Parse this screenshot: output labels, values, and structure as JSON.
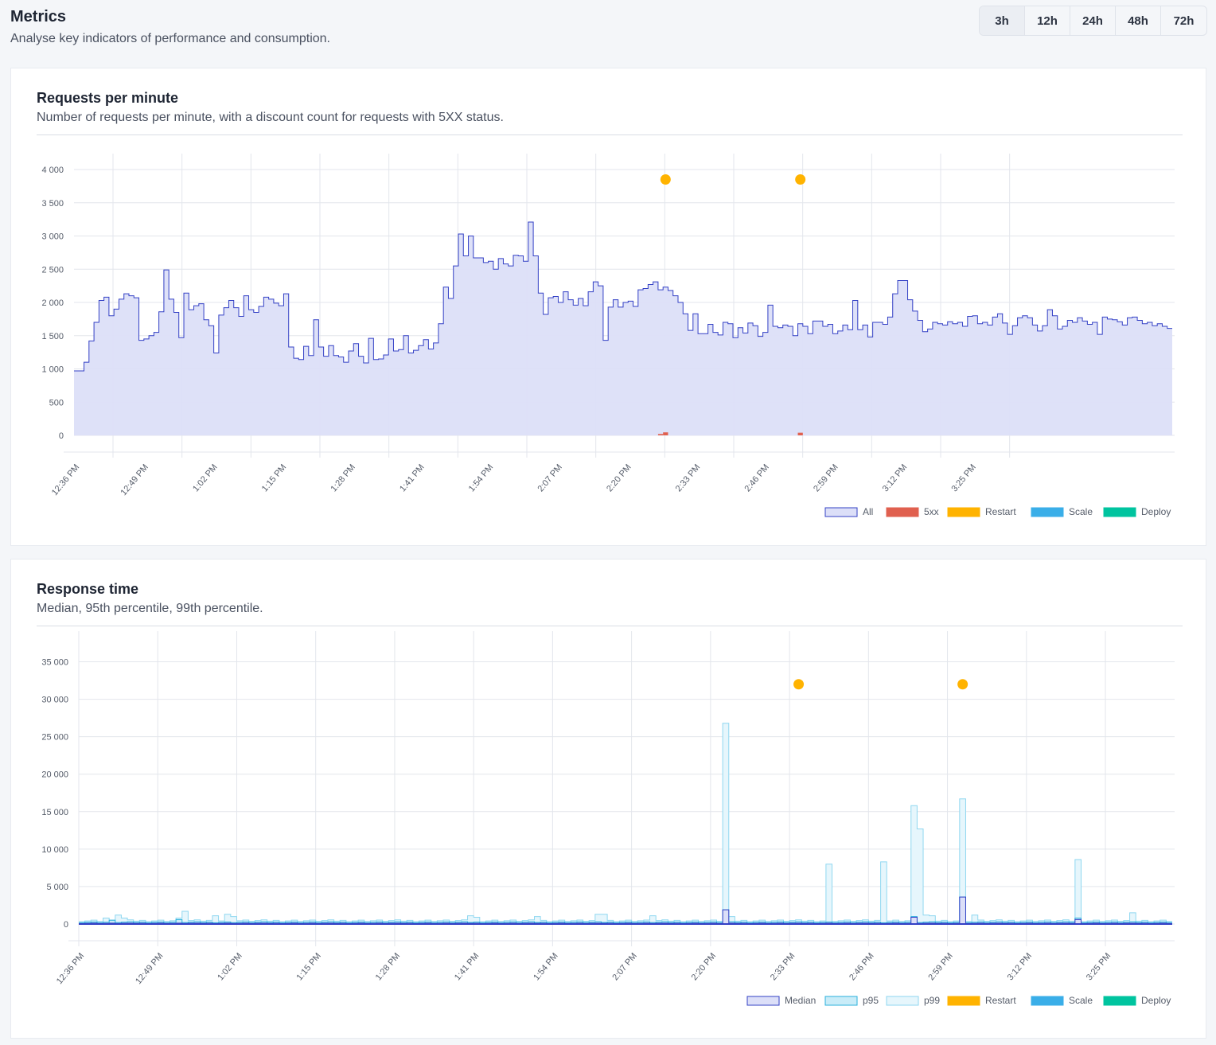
{
  "page": {
    "title": "Metrics",
    "subtitle": "Analyse key indicators of performance and consumption."
  },
  "range": {
    "options": [
      "3h",
      "12h",
      "24h",
      "48h",
      "72h"
    ],
    "selected": "3h"
  },
  "colors": {
    "all_fill": "#dcdff8",
    "all_line": "#3340c5",
    "fivexx": "#e0604f",
    "restart": "#ffb300",
    "scale": "#3aaee8",
    "deploy": "#00c49f",
    "median_fill": "#dcdff8",
    "median_line": "#3340c5",
    "p95_fill": "#c9ecf8",
    "p95_line": "#2ab0dd",
    "p99_fill": "#e6f6fc",
    "p99_line": "#8fd7f0"
  },
  "requests_card": {
    "title": "Requests per minute",
    "subtitle": "Number of requests per minute, with a discount count for requests with 5XX status."
  },
  "response_card": {
    "title": "Response time",
    "subtitle": "Median, 95th percentile, 99th percentile."
  },
  "chart_data": [
    {
      "type": "area",
      "step": true,
      "title": "Requests per minute",
      "x_start": "12:36 PM",
      "x_interval_minutes": 1,
      "x_ticks": [
        "12:36 PM",
        "12:49 PM",
        "1:02 PM",
        "1:15 PM",
        "1:28 PM",
        "1:41 PM",
        "1:54 PM",
        "2:07 PM",
        "2:20 PM",
        "2:33 PM",
        "2:46 PM",
        "2:59 PM",
        "3:12 PM",
        "3:25 PM"
      ],
      "y_ticks": [
        "0",
        "500",
        "1 000",
        "1 500",
        "2 000",
        "2 500",
        "3 000",
        "3 500",
        "4 000"
      ],
      "ylim": [
        0,
        4000
      ],
      "grid": true,
      "legend": "bottom-right",
      "legend_items": [
        "All",
        "5xx",
        "Restart",
        "Scale",
        "Deploy"
      ],
      "series": [
        {
          "name": "All",
          "values": [
            970,
            970,
            1100,
            1420,
            1700,
            2030,
            2080,
            1800,
            1900,
            2050,
            2130,
            2100,
            2070,
            1430,
            1450,
            1500,
            1550,
            1860,
            2490,
            2050,
            1850,
            1470,
            2140,
            1890,
            1950,
            1980,
            1740,
            1650,
            1240,
            1810,
            1920,
            2030,
            1920,
            1790,
            2100,
            1890,
            1850,
            1940,
            2080,
            2050,
            1990,
            1950,
            2130,
            1330,
            1160,
            1140,
            1340,
            1200,
            1740,
            1330,
            1190,
            1350,
            1200,
            1180,
            1100,
            1270,
            1380,
            1190,
            1090,
            1460,
            1140,
            1150,
            1210,
            1450,
            1270,
            1290,
            1500,
            1240,
            1280,
            1350,
            1440,
            1300,
            1390,
            1680,
            2230,
            2060,
            2550,
            3030,
            2700,
            3000,
            2670,
            2670,
            2600,
            2620,
            2500,
            2660,
            2580,
            2550,
            2710,
            2700,
            2620,
            3210,
            2700,
            2140,
            1820,
            2070,
            2090,
            2000,
            2160,
            2040,
            1960,
            2060,
            1950,
            2160,
            2310,
            2250,
            1430,
            1930,
            2040,
            1930,
            2000,
            2020,
            1940,
            2190,
            2210,
            2270,
            2310,
            2190,
            2230,
            2180,
            2100,
            2000,
            1830,
            1580,
            1830,
            1530,
            1530,
            1670,
            1550,
            1510,
            1700,
            1680,
            1470,
            1620,
            1540,
            1690,
            1650,
            1490,
            1550,
            1960,
            1640,
            1620,
            1660,
            1640,
            1500,
            1680,
            1640,
            1530,
            1720,
            1720,
            1640,
            1670,
            1530,
            1570,
            1660,
            1590,
            2030,
            1590,
            1660,
            1480,
            1700,
            1700,
            1670,
            1780,
            2130,
            2330,
            2330,
            2040,
            1870,
            1730,
            1560,
            1600,
            1700,
            1680,
            1660,
            1710,
            1680,
            1700,
            1640,
            1790,
            1800,
            1680,
            1700,
            1660,
            1780,
            1830,
            1690,
            1520,
            1650,
            1770,
            1800,
            1770,
            1660,
            1570,
            1650,
            1890,
            1800,
            1600,
            1640,
            1730,
            1700,
            1770,
            1720,
            1670,
            1700,
            1520,
            1780,
            1750,
            1740,
            1710,
            1660,
            1770,
            1780,
            1730,
            1680,
            1700,
            1650,
            1680,
            1640,
            1610
          ],
          "note_n": 0
        },
        {
          "name": "5xx",
          "points": [
            {
              "x": "2:33 PM",
              "y": 20
            },
            {
              "x": "2:34 PM",
              "y": 45
            },
            {
              "x": "3:01 PM",
              "y": 40
            }
          ]
        }
      ],
      "events": [
        {
          "type": "Restart",
          "x": "2:34 PM"
        },
        {
          "type": "Restart",
          "x": "3:01 PM"
        }
      ]
    },
    {
      "type": "area",
      "step": true,
      "title": "Response time",
      "x_start": "12:36 PM",
      "x_interval_minutes": 1,
      "x_ticks": [
        "12:36 PM",
        "12:49 PM",
        "1:02 PM",
        "1:15 PM",
        "1:28 PM",
        "1:41 PM",
        "1:54 PM",
        "2:07 PM",
        "2:20 PM",
        "2:33 PM",
        "2:46 PM",
        "2:59 PM",
        "3:12 PM",
        "3:25 PM"
      ],
      "y_ticks": [
        "0",
        "5 000",
        "10 000",
        "15 000",
        "20 000",
        "25 000",
        "30 000",
        "35 000"
      ],
      "ylim": [
        0,
        37500
      ],
      "grid": true,
      "legend": "bottom-right",
      "legend_items": [
        "Median",
        "p95",
        "p99",
        "Restart",
        "Scale",
        "Deploy"
      ],
      "series": [
        {
          "name": "Median",
          "base": 100,
          "spikes": [
            {
              "x": "2:22 PM",
              "y": 1900
            },
            {
              "x": "2:53 PM",
              "y": 900
            },
            {
              "x": "3:01 PM",
              "y": 3600
            },
            {
              "x": "3:20 PM",
              "y": 600
            }
          ]
        },
        {
          "name": "p95",
          "base": 250,
          "spikes": [
            {
              "x": "2:22 PM",
              "y": 1900
            },
            {
              "x": "2:53 PM",
              "y": 1000
            },
            {
              "x": "3:01 PM",
              "y": 3600
            },
            {
              "x": "3:20 PM",
              "y": 800
            },
            {
              "x": "12:41 PM",
              "y": 500
            },
            {
              "x": "12:52 PM",
              "y": 600
            }
          ]
        },
        {
          "name": "p99",
          "base": 450,
          "spikes": [
            {
              "x": "12:40 PM",
              "y": 800
            },
            {
              "x": "12:42 PM",
              "y": 1200
            },
            {
              "x": "12:43 PM",
              "y": 800
            },
            {
              "x": "12:52 PM",
              "y": 800
            },
            {
              "x": "12:53 PM",
              "y": 1700
            },
            {
              "x": "12:58 PM",
              "y": 1100
            },
            {
              "x": "13:00 PM",
              "y": 1300
            },
            {
              "x": "13:01 PM",
              "y": 1000
            },
            {
              "x": "13:40 PM",
              "y": 1100
            },
            {
              "x": "13:41 PM",
              "y": 900
            },
            {
              "x": "13:51 PM",
              "y": 1000
            },
            {
              "x": "14:01 PM",
              "y": 1300
            },
            {
              "x": "14:02 PM",
              "y": 1300
            },
            {
              "x": "14:10 PM",
              "y": 1100
            },
            {
              "x": "14:22 PM",
              "y": 26800
            },
            {
              "x": "14:23 PM",
              "y": 1000
            },
            {
              "x": "14:39 PM",
              "y": 8000
            },
            {
              "x": "14:48 PM",
              "y": 8300
            },
            {
              "x": "14:53 PM",
              "y": 15800
            },
            {
              "x": "14:54 PM",
              "y": 12700
            },
            {
              "x": "14:55 PM",
              "y": 1200
            },
            {
              "x": "14:56 PM",
              "y": 1100
            },
            {
              "x": "15:01 PM",
              "y": 16700
            },
            {
              "x": "15:03 PM",
              "y": 1200
            },
            {
              "x": "15:20 PM",
              "y": 8600
            },
            {
              "x": "15:29 PM",
              "y": 1500
            }
          ]
        }
      ],
      "events": [
        {
          "type": "Restart",
          "x": "2:34 PM"
        },
        {
          "type": "Restart",
          "x": "3:01 PM"
        }
      ]
    }
  ]
}
